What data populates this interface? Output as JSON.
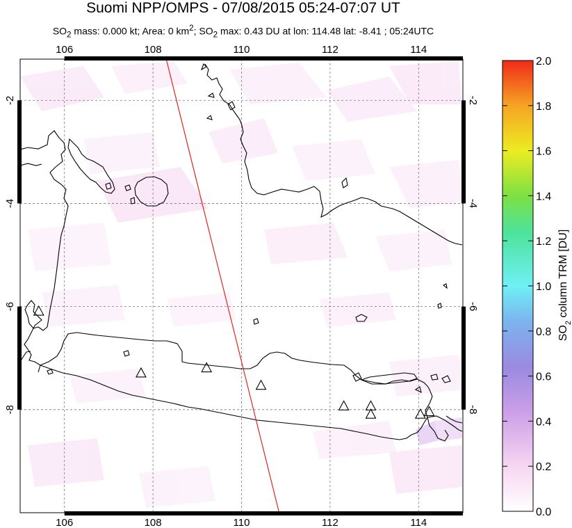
{
  "header": {
    "title": "Suomi NPP/OMPS - 07/08/2015 05:24-07:07 UT",
    "subtitle_html": "SO<sub>2</sub> mass: 0.000 kt; Area: 0 km<sup>2</sup>; SO<sub>2</sub> max: 0.43 DU at lon: 114.48 lat: -8.41 ; 05:24UTC"
  },
  "map": {
    "lon_range": [
      105,
      115
    ],
    "lat_range": [
      -10,
      -1.2
    ],
    "lon_ticks": [
      "106",
      "108",
      "110",
      "112",
      "114"
    ],
    "lat_ticks": [
      "-2",
      "-4",
      "-6",
      "-8"
    ],
    "orbit_track": {
      "start": [
        108.3,
        -1.2
      ],
      "end": [
        110.85,
        -10
      ]
    },
    "volcanoes": [
      {
        "lon": 105.42,
        "lat": -6.1
      },
      {
        "lon": 107.73,
        "lat": -7.3
      },
      {
        "lon": 109.21,
        "lat": -7.2
      },
      {
        "lon": 110.44,
        "lat": -7.54
      },
      {
        "lon": 112.31,
        "lat": -7.94
      },
      {
        "lon": 112.92,
        "lat": -7.94
      },
      {
        "lon": 112.92,
        "lat": -8.1
      },
      {
        "lon": 114.04,
        "lat": -8.1
      },
      {
        "lon": 114.24,
        "lat": -8.05
      }
    ],
    "colors": {
      "coast": "#000000",
      "orbit": "#e0251b",
      "grid": "#777777",
      "low_so2": "#f8dcf4",
      "max_so2": "#d9b4ef"
    }
  },
  "colorbar": {
    "ticks": [
      "0.0",
      "0.2",
      "0.4",
      "0.6",
      "0.8",
      "1.0",
      "1.2",
      "1.4",
      "1.6",
      "1.8",
      "2.0"
    ],
    "label": "SO<tspan baseline-shift='sub' font-size='11'>2</tspan> column TRM [DU]",
    "range": [
      0,
      2
    ]
  }
}
